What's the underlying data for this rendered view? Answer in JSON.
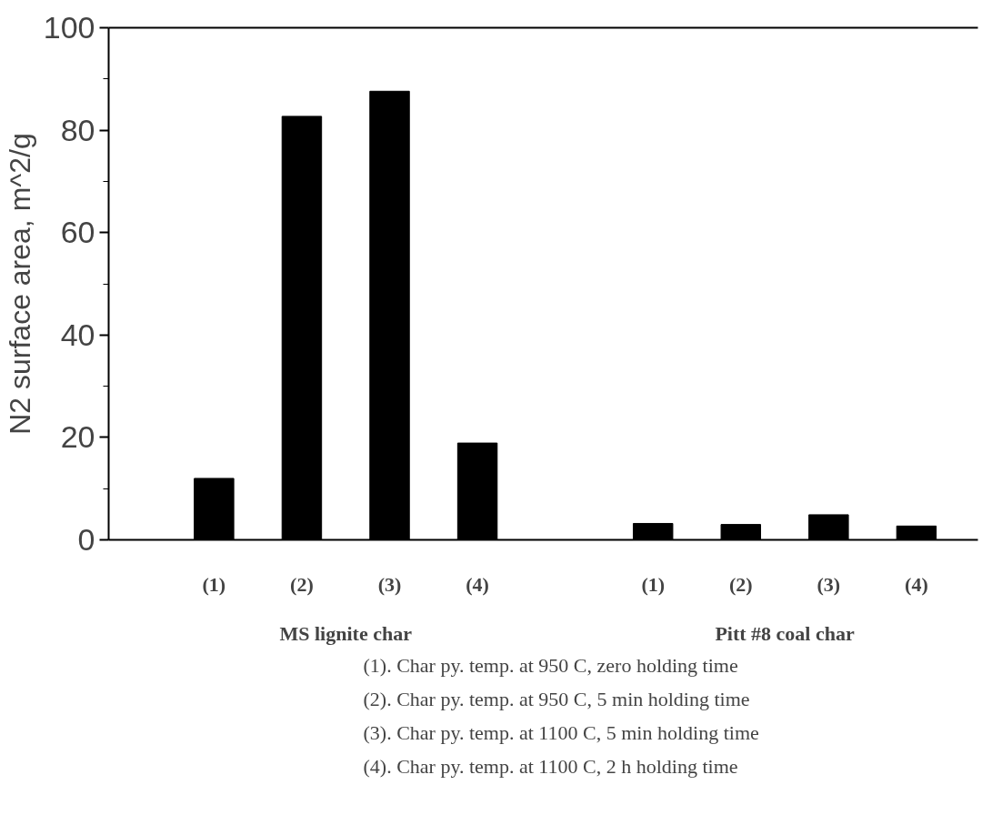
{
  "chart_data": {
    "type": "bar",
    "ylabel": "N2 surface area, m^2/g",
    "categories": [
      "(1)",
      "(2)",
      "(3)",
      "(4)",
      null,
      "(1)",
      "(2)",
      "(3)",
      "(4)"
    ],
    "values": [
      12.0,
      82.7,
      87.6,
      18.9,
      null,
      3.2,
      3.0,
      4.9,
      2.7
    ],
    "color": "#000000",
    "ylim": [
      0,
      100
    ],
    "yticks": [
      0,
      20,
      40,
      60,
      80,
      100
    ],
    "grid": false,
    "annotations": [
      "MS lignite char",
      "Pitt #8 coal char",
      "(1). Char py. temp. at 950 C, zero holding time",
      "(2). Char py. temp. at 950 C, 5 min holding time",
      "(3). Char py. temp. at 1100 C, 5 min holding time",
      "(4). Char py. temp. at 1100 C, 2 h holding time"
    ]
  }
}
